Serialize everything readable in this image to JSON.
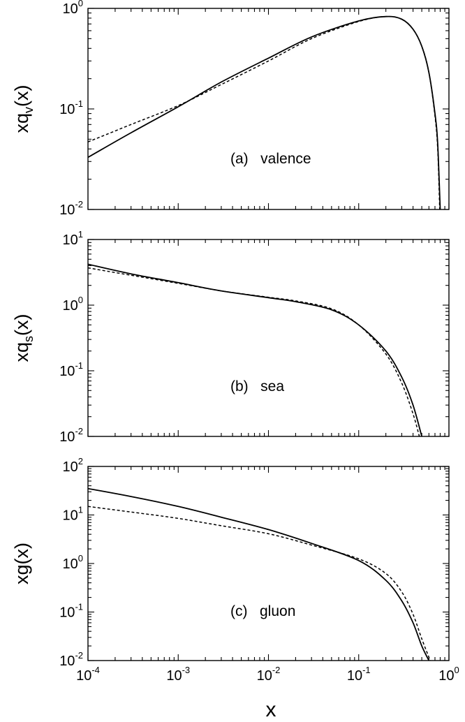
{
  "figure": {
    "xlabel": "x"
  },
  "chart_data": [
    {
      "type": "line",
      "panel": "a",
      "annotation": "(a)   valence",
      "ylabel": {
        "base": "xq",
        "sub": "v",
        "tail": "(x)"
      },
      "xscale": "log",
      "yscale": "log",
      "xlim": [
        0.0001,
        1
      ],
      "ylim": [
        0.01,
        1
      ],
      "y_ticks": [
        {
          "b": "10",
          "e": "-2"
        },
        {
          "b": "10",
          "e": "-1"
        },
        {
          "b": "10",
          "e": "0"
        }
      ],
      "series": [
        {
          "style": "solid",
          "points": [
            [
              0.0001,
              0.033
            ],
            [
              0.0003,
              0.058
            ],
            [
              0.001,
              0.105
            ],
            [
              0.003,
              0.185
            ],
            [
              0.01,
              0.32
            ],
            [
              0.03,
              0.52
            ],
            [
              0.1,
              0.75
            ],
            [
              0.2,
              0.83
            ],
            [
              0.3,
              0.78
            ],
            [
              0.4,
              0.62
            ],
            [
              0.5,
              0.42
            ],
            [
              0.6,
              0.23
            ],
            [
              0.7,
              0.09
            ],
            [
              0.75,
              0.045
            ],
            [
              0.8,
              0.01
            ]
          ]
        },
        {
          "style": "dashed",
          "points": [
            [
              0.0001,
              0.047
            ],
            [
              0.0003,
              0.07
            ],
            [
              0.001,
              0.108
            ],
            [
              0.003,
              0.175
            ],
            [
              0.01,
              0.3
            ],
            [
              0.03,
              0.5
            ],
            [
              0.1,
              0.74
            ],
            [
              0.2,
              0.83
            ],
            [
              0.3,
              0.78
            ],
            [
              0.4,
              0.62
            ],
            [
              0.5,
              0.42
            ],
            [
              0.6,
              0.23
            ],
            [
              0.7,
              0.085
            ],
            [
              0.75,
              0.04
            ],
            [
              0.79,
              0.01
            ]
          ]
        }
      ]
    },
    {
      "type": "line",
      "panel": "b",
      "annotation": "(b)   sea",
      "ylabel": {
        "base": "xq",
        "sub": "s",
        "tail": "(x)"
      },
      "xscale": "log",
      "yscale": "log",
      "xlim": [
        0.0001,
        1
      ],
      "ylim": [
        0.01,
        10
      ],
      "y_ticks": [
        {
          "b": "10",
          "e": "-2"
        },
        {
          "b": "10",
          "e": "-1"
        },
        {
          "b": "10",
          "e": "0"
        },
        {
          "b": "10",
          "e": "1"
        }
      ],
      "series": [
        {
          "style": "solid",
          "points": [
            [
              0.0001,
              4.2
            ],
            [
              0.0003,
              3.0
            ],
            [
              0.001,
              2.2
            ],
            [
              0.003,
              1.65
            ],
            [
              0.01,
              1.3
            ],
            [
              0.02,
              1.13
            ],
            [
              0.05,
              0.85
            ],
            [
              0.1,
              0.5
            ],
            [
              0.2,
              0.2
            ],
            [
              0.3,
              0.08
            ],
            [
              0.4,
              0.03
            ],
            [
              0.5,
              0.01
            ]
          ]
        },
        {
          "style": "dashed",
          "points": [
            [
              0.0001,
              3.7
            ],
            [
              0.0003,
              2.85
            ],
            [
              0.001,
              2.15
            ],
            [
              0.003,
              1.65
            ],
            [
              0.01,
              1.32
            ],
            [
              0.02,
              1.16
            ],
            [
              0.05,
              0.88
            ],
            [
              0.1,
              0.5
            ],
            [
              0.2,
              0.18
            ],
            [
              0.3,
              0.065
            ],
            [
              0.4,
              0.022
            ],
            [
              0.47,
              0.01
            ]
          ]
        }
      ]
    },
    {
      "type": "line",
      "panel": "c",
      "annotation": "(c)   gluon",
      "ylabel": {
        "base": "xg",
        "sub": "",
        "tail": "(x)"
      },
      "xscale": "log",
      "yscale": "log",
      "xlim": [
        0.0001,
        1
      ],
      "ylim": [
        0.01,
        100
      ],
      "y_ticks": [
        {
          "b": "10",
          "e": "-2"
        },
        {
          "b": "10",
          "e": "-1"
        },
        {
          "b": "10",
          "e": "0"
        },
        {
          "b": "10",
          "e": "1"
        },
        {
          "b": "10",
          "e": "2"
        }
      ],
      "x_ticks": [
        {
          "b": "10",
          "e": "-4"
        },
        {
          "b": "10",
          "e": "-3"
        },
        {
          "b": "10",
          "e": "-2"
        },
        {
          "b": "10",
          "e": "-1"
        },
        {
          "b": "10",
          "e": "0"
        }
      ],
      "series": [
        {
          "style": "solid",
          "points": [
            [
              0.0001,
              35
            ],
            [
              0.0003,
              24
            ],
            [
              0.001,
              15
            ],
            [
              0.003,
              9
            ],
            [
              0.01,
              5
            ],
            [
              0.03,
              2.6
            ],
            [
              0.1,
              1.15
            ],
            [
              0.2,
              0.45
            ],
            [
              0.3,
              0.17
            ],
            [
              0.4,
              0.06
            ],
            [
              0.5,
              0.02
            ],
            [
              0.6,
              0.01
            ]
          ]
        },
        {
          "style": "dashed",
          "points": [
            [
              0.0001,
              15
            ],
            [
              0.0003,
              11.5
            ],
            [
              0.001,
              8.5
            ],
            [
              0.003,
              6
            ],
            [
              0.01,
              4.1
            ],
            [
              0.03,
              2.4
            ],
            [
              0.1,
              1.25
            ],
            [
              0.2,
              0.62
            ],
            [
              0.3,
              0.26
            ],
            [
              0.4,
              0.09
            ],
            [
              0.5,
              0.028
            ],
            [
              0.62,
              0.01
            ]
          ]
        }
      ]
    }
  ]
}
